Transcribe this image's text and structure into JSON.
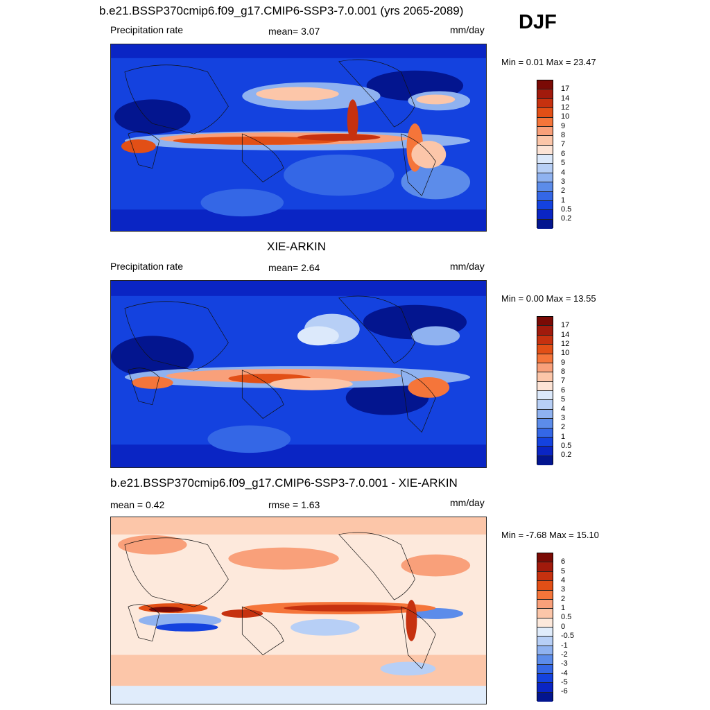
{
  "season": "DJF",
  "panels": [
    {
      "title": "b.e21.BSSP370cmip6.f09_g17.CMIP6-SSP3-7.0.001 (yrs 2065-2089)",
      "left_label": "Precipitation rate",
      "center_label": "mean=   3.07",
      "units": "mm/day",
      "minmax": "Min =   0.01 Max =  23.47"
    },
    {
      "title": "XIE-ARKIN",
      "left_label": "Precipitation rate",
      "center_label": "mean=   2.64",
      "units": "mm/day",
      "minmax": "Min =   0.00 Max =  13.55"
    },
    {
      "title": "b.e21.BSSP370cmip6.f09_g17.CMIP6-SSP3-7.0.001 - XIE-ARKIN",
      "left_label": "mean =   0.42",
      "center_label": "rmse =   1.63",
      "units": "mm/day",
      "minmax": "Min =  -7.68 Max =  15.10"
    }
  ],
  "precip_scale": {
    "labels": [
      "17",
      "14",
      "12",
      "10",
      "9",
      "8",
      "7",
      "6",
      "5",
      "4",
      "3",
      "2",
      "1",
      "0.5",
      "0.2"
    ],
    "colors": [
      "#7a0a05",
      "#a11a0c",
      "#c6310f",
      "#e24f16",
      "#f5753a",
      "#f9a07a",
      "#fcc6a9",
      "#fde4d6",
      "#dce9fb",
      "#b7cff6",
      "#8fb2f0",
      "#5c8cea",
      "#3467e6",
      "#1442df",
      "#0a25c4",
      "#03158f"
    ]
  },
  "diff_scale": {
    "labels": [
      "6",
      "5",
      "4",
      "3",
      "2",
      "1",
      "0.5",
      "0",
      "-0.5",
      "-1",
      "-2",
      "-3",
      "-4",
      "-5",
      "-6"
    ],
    "colors": [
      "#7a0a05",
      "#a11a0c",
      "#c6310f",
      "#e24f16",
      "#f5753a",
      "#f9a07a",
      "#fcc6a9",
      "#fde9dc",
      "#e0ecfb",
      "#b7cff6",
      "#8fb2f0",
      "#5c8cea",
      "#3467e6",
      "#1442df",
      "#0a25c4",
      "#03158f"
    ]
  }
}
